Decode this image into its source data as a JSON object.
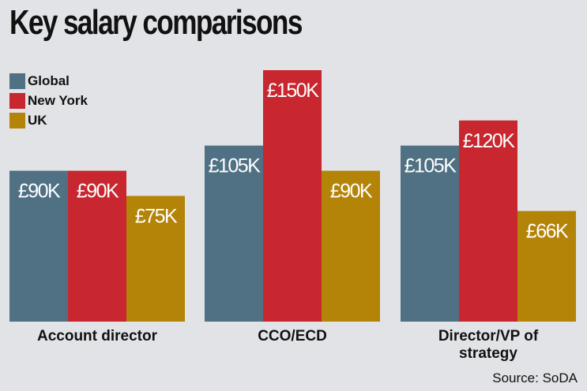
{
  "title": "Key salary comparisons",
  "source": "Source: SoDA",
  "colors": {
    "background": "#e1e3e6",
    "Global": "#507184",
    "New York": "#c8272f",
    "UK": "#b48409"
  },
  "legend": [
    {
      "label": "Global",
      "color": "#507184"
    },
    {
      "label": "New York",
      "color": "#c8272f"
    },
    {
      "label": "UK",
      "color": "#b48409"
    }
  ],
  "chart_data": {
    "type": "bar",
    "title": "Key salary comparisons",
    "xlabel": "",
    "ylabel": "",
    "ylim": [
      0,
      150
    ],
    "unit": "£K",
    "categories": [
      [
        "Account director"
      ],
      [
        "CCO/ECD"
      ],
      [
        "Director/VP of",
        "strategy"
      ]
    ],
    "series": [
      {
        "name": "Global",
        "values": [
          90,
          105,
          105
        ],
        "labels": [
          "£90K",
          "£105K",
          "£105K"
        ]
      },
      {
        "name": "New York",
        "values": [
          90,
          150,
          120
        ],
        "labels": [
          "£90K",
          "£150K",
          "£120K"
        ]
      },
      {
        "name": "UK",
        "values": [
          75,
          90,
          66
        ],
        "labels": [
          "£75K",
          "£90K",
          "£66K"
        ]
      }
    ],
    "legend_position": "top-left",
    "grid": false,
    "value_labels": "inside-top"
  }
}
